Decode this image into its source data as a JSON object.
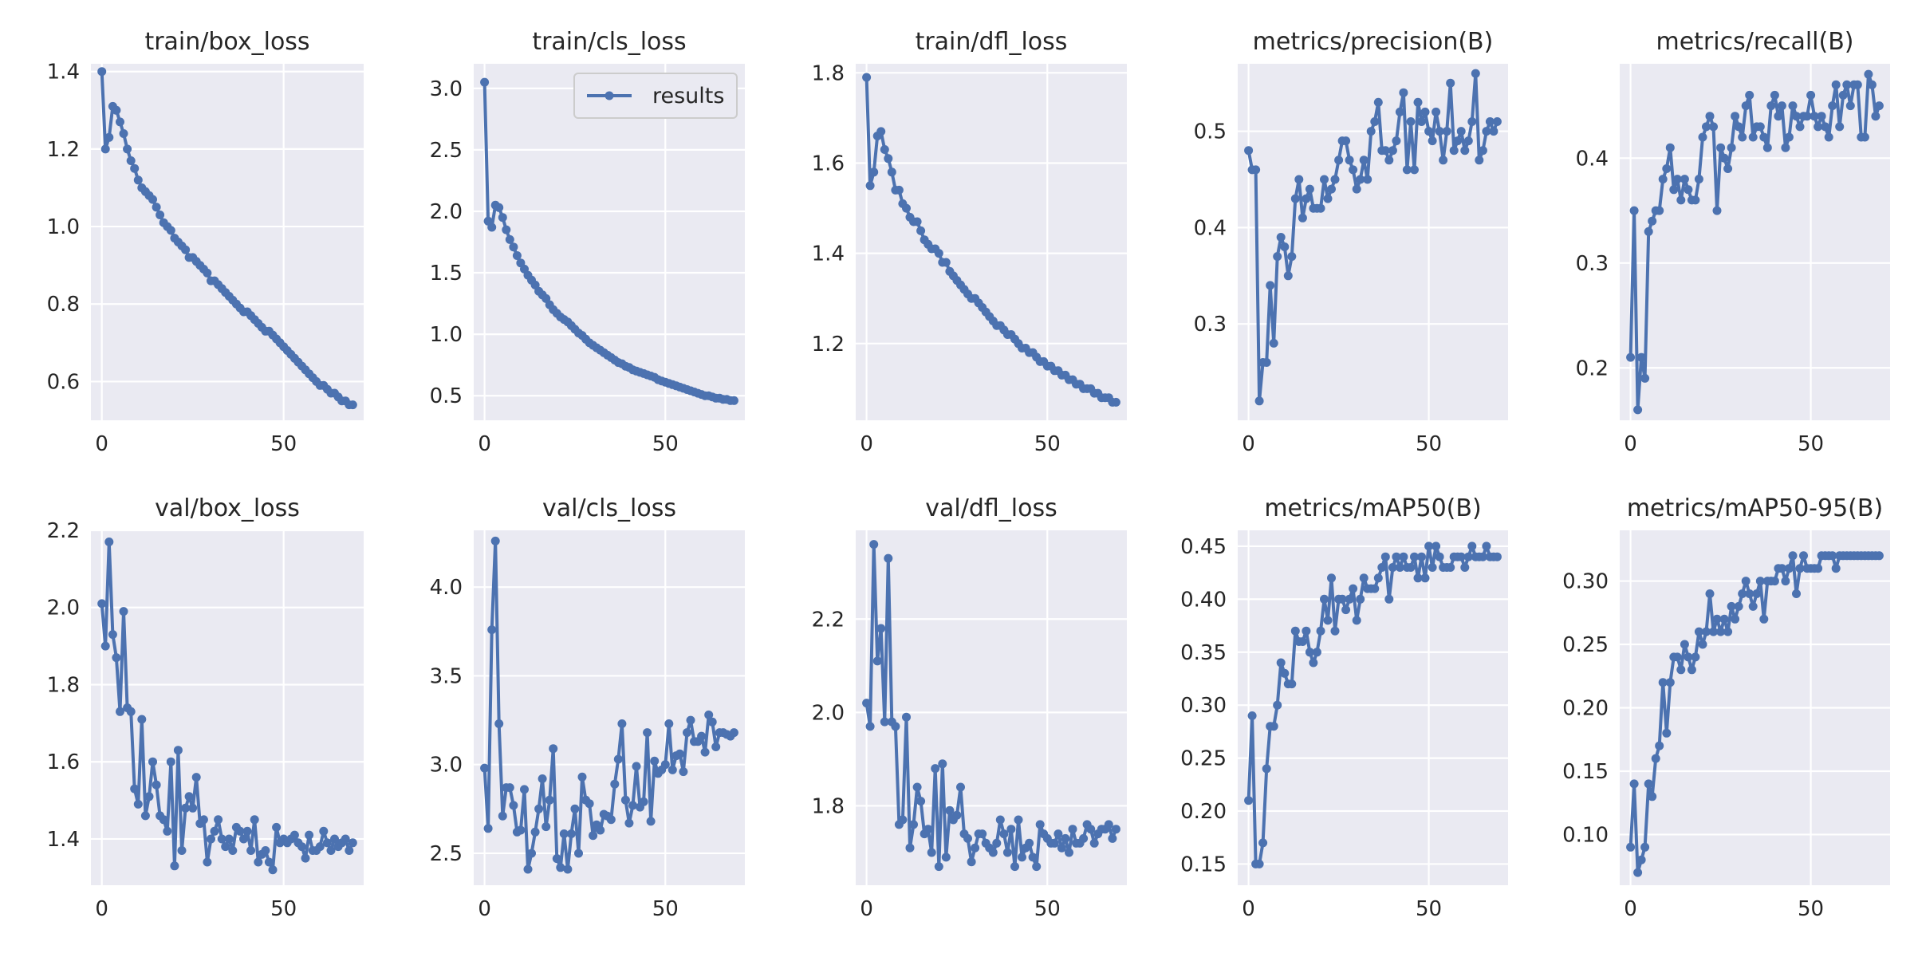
{
  "figure": {
    "style": {
      "panel_bg": "#eaeaf2",
      "grid": "#ffffff",
      "line": "#4c72b0",
      "legend_bg": "#eaeaf2",
      "legend_border": "#cccccc"
    },
    "legend_label": "results"
  },
  "chart_data": [
    {
      "type": "line",
      "title": "train/box_loss",
      "xlim": [
        -3,
        72
      ],
      "ylim": [
        0.5,
        1.42
      ],
      "xticks": [
        0,
        50
      ],
      "yticks": [
        0.6,
        0.8,
        1.0,
        1.2,
        1.4
      ],
      "ytick_labels": [
        "0.6",
        "0.8",
        "1.0",
        "1.2",
        "1.4"
      ],
      "grid": true,
      "series": [
        {
          "name": "results",
          "x_start": 0,
          "values": [
            1.4,
            1.2,
            1.23,
            1.31,
            1.3,
            1.27,
            1.24,
            1.2,
            1.17,
            1.15,
            1.12,
            1.1,
            1.09,
            1.08,
            1.07,
            1.05,
            1.03,
            1.01,
            1.0,
            0.99,
            0.97,
            0.96,
            0.95,
            0.94,
            0.92,
            0.92,
            0.91,
            0.9,
            0.89,
            0.88,
            0.86,
            0.86,
            0.85,
            0.84,
            0.83,
            0.82,
            0.81,
            0.8,
            0.79,
            0.78,
            0.78,
            0.77,
            0.76,
            0.75,
            0.74,
            0.73,
            0.73,
            0.72,
            0.71,
            0.7,
            0.69,
            0.68,
            0.67,
            0.66,
            0.65,
            0.64,
            0.63,
            0.62,
            0.61,
            0.6,
            0.59,
            0.59,
            0.58,
            0.57,
            0.57,
            0.56,
            0.55,
            0.55,
            0.54,
            0.54
          ]
        }
      ]
    },
    {
      "type": "line",
      "title": "train/cls_loss",
      "xlim": [
        -3,
        72
      ],
      "ylim": [
        0.3,
        3.2
      ],
      "xticks": [
        0,
        50
      ],
      "yticks": [
        0.5,
        1.0,
        1.5,
        2.0,
        2.5,
        3.0
      ],
      "ytick_labels": [
        "0.5",
        "1.0",
        "1.5",
        "2.0",
        "2.5",
        "3.0"
      ],
      "grid": true,
      "legend": "top-right",
      "series": [
        {
          "name": "results",
          "x_start": 0,
          "values": [
            3.05,
            1.92,
            1.87,
            2.05,
            2.03,
            1.95,
            1.85,
            1.77,
            1.71,
            1.64,
            1.58,
            1.53,
            1.48,
            1.44,
            1.4,
            1.35,
            1.32,
            1.29,
            1.24,
            1.2,
            1.17,
            1.14,
            1.12,
            1.1,
            1.07,
            1.04,
            1.01,
            0.99,
            0.96,
            0.93,
            0.91,
            0.89,
            0.87,
            0.85,
            0.83,
            0.81,
            0.79,
            0.77,
            0.76,
            0.74,
            0.73,
            0.71,
            0.7,
            0.69,
            0.68,
            0.67,
            0.66,
            0.65,
            0.63,
            0.62,
            0.61,
            0.6,
            0.59,
            0.58,
            0.57,
            0.56,
            0.55,
            0.54,
            0.53,
            0.52,
            0.51,
            0.5,
            0.5,
            0.49,
            0.48,
            0.48,
            0.47,
            0.47,
            0.46,
            0.46
          ]
        }
      ]
    },
    {
      "type": "line",
      "title": "train/dfl_loss",
      "xlim": [
        -3,
        72
      ],
      "ylim": [
        1.03,
        1.82
      ],
      "xticks": [
        0,
        50
      ],
      "yticks": [
        1.2,
        1.4,
        1.6,
        1.8
      ],
      "ytick_labels": [
        "1.2",
        "1.4",
        "1.6",
        "1.8"
      ],
      "grid": true,
      "series": [
        {
          "name": "results",
          "x_start": 0,
          "values": [
            1.79,
            1.55,
            1.58,
            1.66,
            1.67,
            1.63,
            1.61,
            1.58,
            1.54,
            1.54,
            1.51,
            1.5,
            1.48,
            1.47,
            1.47,
            1.45,
            1.43,
            1.42,
            1.41,
            1.41,
            1.4,
            1.38,
            1.38,
            1.36,
            1.35,
            1.34,
            1.33,
            1.32,
            1.31,
            1.3,
            1.3,
            1.29,
            1.28,
            1.27,
            1.26,
            1.25,
            1.24,
            1.24,
            1.23,
            1.22,
            1.22,
            1.21,
            1.2,
            1.19,
            1.19,
            1.18,
            1.18,
            1.17,
            1.16,
            1.16,
            1.15,
            1.15,
            1.14,
            1.14,
            1.13,
            1.13,
            1.12,
            1.12,
            1.11,
            1.11,
            1.1,
            1.1,
            1.1,
            1.09,
            1.09,
            1.08,
            1.08,
            1.08,
            1.07,
            1.07
          ]
        }
      ]
    },
    {
      "type": "line",
      "title": "metrics/precision(B)",
      "xlim": [
        -3,
        72
      ],
      "ylim": [
        0.2,
        0.57
      ],
      "xticks": [
        0,
        50
      ],
      "yticks": [
        0.3,
        0.4,
        0.5
      ],
      "ytick_labels": [
        "0.3",
        "0.4",
        "0.5"
      ],
      "grid": true,
      "series": [
        {
          "name": "results",
          "x_start": 0,
          "values": [
            0.48,
            0.46,
            0.46,
            0.22,
            0.26,
            0.26,
            0.34,
            0.28,
            0.37,
            0.39,
            0.38,
            0.35,
            0.37,
            0.43,
            0.45,
            0.41,
            0.43,
            0.44,
            0.42,
            0.42,
            0.42,
            0.45,
            0.43,
            0.44,
            0.45,
            0.47,
            0.49,
            0.49,
            0.47,
            0.46,
            0.44,
            0.45,
            0.47,
            0.45,
            0.5,
            0.51,
            0.53,
            0.48,
            0.48,
            0.47,
            0.48,
            0.49,
            0.52,
            0.54,
            0.46,
            0.51,
            0.46,
            0.53,
            0.51,
            0.52,
            0.5,
            0.49,
            0.52,
            0.5,
            0.47,
            0.5,
            0.55,
            0.48,
            0.49,
            0.5,
            0.48,
            0.49,
            0.51,
            0.56,
            0.47,
            0.48,
            0.5,
            0.51,
            0.5,
            0.51
          ]
        }
      ]
    },
    {
      "type": "line",
      "title": "metrics/recall(B)",
      "xlim": [
        -3,
        72
      ],
      "ylim": [
        0.15,
        0.49
      ],
      "xticks": [
        0,
        50
      ],
      "yticks": [
        0.2,
        0.3,
        0.4
      ],
      "ytick_labels": [
        "0.2",
        "0.3",
        "0.4"
      ],
      "grid": true,
      "series": [
        {
          "name": "results",
          "x_start": 0,
          "values": [
            0.21,
            0.35,
            0.16,
            0.21,
            0.19,
            0.33,
            0.34,
            0.35,
            0.35,
            0.38,
            0.39,
            0.41,
            0.37,
            0.38,
            0.36,
            0.38,
            0.37,
            0.36,
            0.36,
            0.38,
            0.42,
            0.43,
            0.44,
            0.43,
            0.35,
            0.41,
            0.4,
            0.39,
            0.41,
            0.44,
            0.43,
            0.42,
            0.45,
            0.46,
            0.42,
            0.43,
            0.43,
            0.42,
            0.41,
            0.45,
            0.46,
            0.44,
            0.45,
            0.41,
            0.42,
            0.45,
            0.44,
            0.43,
            0.44,
            0.44,
            0.46,
            0.44,
            0.43,
            0.44,
            0.43,
            0.42,
            0.45,
            0.47,
            0.43,
            0.46,
            0.47,
            0.45,
            0.47,
            0.47,
            0.42,
            0.42,
            0.48,
            0.47,
            0.44,
            0.45
          ]
        }
      ]
    },
    {
      "type": "line",
      "title": "val/box_loss",
      "xlim": [
        -3,
        72
      ],
      "ylim": [
        1.28,
        2.2
      ],
      "xticks": [
        0,
        50
      ],
      "yticks": [
        1.4,
        1.6,
        1.8,
        2.0,
        2.2
      ],
      "ytick_labels": [
        "1.4",
        "1.6",
        "1.8",
        "2.0",
        "2.2"
      ],
      "grid": true,
      "series": [
        {
          "name": "results",
          "x_start": 0,
          "values": [
            2.01,
            1.9,
            2.17,
            1.93,
            1.87,
            1.73,
            1.99,
            1.74,
            1.73,
            1.53,
            1.49,
            1.71,
            1.46,
            1.51,
            1.6,
            1.54,
            1.46,
            1.45,
            1.42,
            1.6,
            1.33,
            1.63,
            1.37,
            1.48,
            1.51,
            1.48,
            1.56,
            1.44,
            1.45,
            1.34,
            1.4,
            1.42,
            1.45,
            1.4,
            1.38,
            1.4,
            1.37,
            1.43,
            1.42,
            1.4,
            1.42,
            1.37,
            1.45,
            1.34,
            1.36,
            1.37,
            1.34,
            1.32,
            1.43,
            1.39,
            1.4,
            1.39,
            1.4,
            1.41,
            1.39,
            1.38,
            1.35,
            1.41,
            1.37,
            1.37,
            1.38,
            1.42,
            1.39,
            1.37,
            1.4,
            1.38,
            1.39,
            1.4,
            1.37,
            1.39
          ]
        }
      ]
    },
    {
      "type": "line",
      "title": "val/cls_loss",
      "xlim": [
        -3,
        72
      ],
      "ylim": [
        2.32,
        4.32
      ],
      "xticks": [
        0,
        50
      ],
      "yticks": [
        2.5,
        3.0,
        3.5,
        4.0
      ],
      "ytick_labels": [
        "2.5",
        "3.0",
        "3.5",
        "4.0"
      ],
      "grid": true,
      "series": [
        {
          "name": "results",
          "x_start": 0,
          "values": [
            2.98,
            2.64,
            3.76,
            4.26,
            3.23,
            2.71,
            2.87,
            2.87,
            2.77,
            2.62,
            2.63,
            2.86,
            2.41,
            2.5,
            2.62,
            2.75,
            2.92,
            2.65,
            2.8,
            3.09,
            2.47,
            2.42,
            2.61,
            2.41,
            2.61,
            2.75,
            2.5,
            2.93,
            2.8,
            2.78,
            2.6,
            2.66,
            2.63,
            2.72,
            2.71,
            2.69,
            2.89,
            3.03,
            3.23,
            2.8,
            2.67,
            2.77,
            2.99,
            2.76,
            2.79,
            3.18,
            2.68,
            3.02,
            2.95,
            2.97,
            3.0,
            3.23,
            2.97,
            3.05,
            3.06,
            2.96,
            3.18,
            3.25,
            3.13,
            3.13,
            3.16,
            3.07,
            3.28,
            3.24,
            3.1,
            3.18,
            3.18,
            3.17,
            3.16,
            3.18
          ]
        }
      ]
    },
    {
      "type": "line",
      "title": "val/dfl_loss",
      "xlim": [
        -3,
        72
      ],
      "ylim": [
        1.63,
        2.39
      ],
      "xticks": [
        0,
        50
      ],
      "yticks": [
        1.8,
        2.0,
        2.2
      ],
      "ytick_labels": [
        "1.8",
        "2.0",
        "2.2"
      ],
      "grid": true,
      "series": [
        {
          "name": "results",
          "x_start": 0,
          "values": [
            2.02,
            1.97,
            2.36,
            2.11,
            2.18,
            1.98,
            2.33,
            1.98,
            1.97,
            1.76,
            1.77,
            1.99,
            1.71,
            1.76,
            1.84,
            1.81,
            1.74,
            1.75,
            1.7,
            1.88,
            1.67,
            1.89,
            1.69,
            1.79,
            1.77,
            1.78,
            1.84,
            1.74,
            1.73,
            1.68,
            1.71,
            1.74,
            1.74,
            1.72,
            1.71,
            1.7,
            1.72,
            1.77,
            1.74,
            1.7,
            1.75,
            1.67,
            1.77,
            1.69,
            1.71,
            1.72,
            1.69,
            1.67,
            1.76,
            1.74,
            1.73,
            1.72,
            1.72,
            1.74,
            1.71,
            1.73,
            1.7,
            1.75,
            1.72,
            1.72,
            1.73,
            1.76,
            1.75,
            1.72,
            1.74,
            1.75,
            1.75,
            1.76,
            1.73,
            1.75
          ]
        }
      ]
    },
    {
      "type": "line",
      "title": "metrics/mAP50(B)",
      "xlim": [
        -3,
        72
      ],
      "ylim": [
        0.13,
        0.465
      ],
      "xticks": [
        0,
        50
      ],
      "yticks": [
        0.15,
        0.2,
        0.25,
        0.3,
        0.35,
        0.4,
        0.45
      ],
      "ytick_labels": [
        "0.15",
        "0.20",
        "0.25",
        "0.30",
        "0.35",
        "0.40",
        "0.45"
      ],
      "grid": true,
      "series": [
        {
          "name": "results",
          "x_start": 0,
          "values": [
            0.21,
            0.29,
            0.15,
            0.15,
            0.17,
            0.24,
            0.28,
            0.28,
            0.3,
            0.34,
            0.33,
            0.32,
            0.32,
            0.37,
            0.36,
            0.36,
            0.37,
            0.35,
            0.34,
            0.35,
            0.37,
            0.4,
            0.38,
            0.42,
            0.37,
            0.4,
            0.4,
            0.39,
            0.4,
            0.41,
            0.38,
            0.4,
            0.42,
            0.41,
            0.41,
            0.41,
            0.42,
            0.43,
            0.44,
            0.4,
            0.43,
            0.44,
            0.43,
            0.44,
            0.43,
            0.43,
            0.44,
            0.42,
            0.44,
            0.42,
            0.45,
            0.43,
            0.45,
            0.44,
            0.43,
            0.43,
            0.43,
            0.44,
            0.44,
            0.44,
            0.43,
            0.44,
            0.45,
            0.44,
            0.44,
            0.44,
            0.45,
            0.44,
            0.44,
            0.44
          ]
        }
      ]
    },
    {
      "type": "line",
      "title": "metrics/mAP50-95(B)",
      "xlim": [
        -3,
        72
      ],
      "ylim": [
        0.06,
        0.34
      ],
      "xticks": [
        0,
        50
      ],
      "yticks": [
        0.1,
        0.15,
        0.2,
        0.25,
        0.3
      ],
      "ytick_labels": [
        "0.10",
        "0.15",
        "0.20",
        "0.25",
        "0.30"
      ],
      "grid": true,
      "series": [
        {
          "name": "results",
          "x_start": 0,
          "values": [
            0.09,
            0.14,
            0.07,
            0.08,
            0.09,
            0.14,
            0.13,
            0.16,
            0.17,
            0.22,
            0.18,
            0.22,
            0.24,
            0.24,
            0.23,
            0.25,
            0.24,
            0.23,
            0.24,
            0.26,
            0.25,
            0.26,
            0.29,
            0.26,
            0.27,
            0.26,
            0.27,
            0.26,
            0.28,
            0.27,
            0.28,
            0.29,
            0.3,
            0.29,
            0.28,
            0.29,
            0.3,
            0.27,
            0.3,
            0.3,
            0.3,
            0.31,
            0.31,
            0.3,
            0.31,
            0.32,
            0.29,
            0.31,
            0.32,
            0.31,
            0.31,
            0.31,
            0.31,
            0.32,
            0.32,
            0.32,
            0.32,
            0.31,
            0.32,
            0.32,
            0.32,
            0.32,
            0.32,
            0.32,
            0.32,
            0.32,
            0.32,
            0.32,
            0.32,
            0.32
          ]
        }
      ]
    }
  ]
}
